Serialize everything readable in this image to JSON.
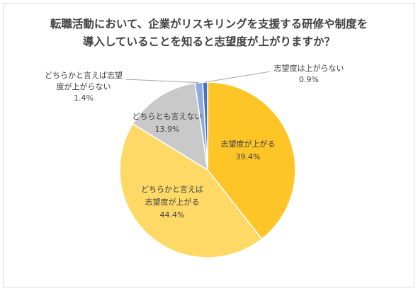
{
  "chart_data": {
    "type": "pie",
    "title_lines": [
      "転職活動において、企業がリスキリングを支援する研修や制度を",
      "導入していることを知ると志望度が上がりますか？"
    ],
    "slices": [
      {
        "label": "志望度が上がる",
        "value": 39.4,
        "value_text": "39.4%",
        "color": "#ffc527"
      },
      {
        "label": "どちらかと言えば志望度が上がる",
        "label_lines": [
          "どちらかと言えば",
          "志望度が上がる"
        ],
        "value": 44.4,
        "value_text": "44.4%",
        "color": "#ffd966"
      },
      {
        "label": "どちらとも言えない",
        "value": 13.9,
        "value_text": "13.9%",
        "color": "#c9c9c9"
      },
      {
        "label": "どちらかと言えば志望度が上がらない",
        "label_lines": [
          "どちらかと言えば志望",
          "度が上がらない"
        ],
        "value": 1.4,
        "value_text": "1.4%",
        "color": "#8faadc"
      },
      {
        "label": "志望度は上がらない",
        "value": 0.9,
        "value_text": "0.9%",
        "color": "#4472c4"
      }
    ],
    "start_at": "12 o'clock",
    "direction": "clockwise",
    "legend": "none"
  }
}
